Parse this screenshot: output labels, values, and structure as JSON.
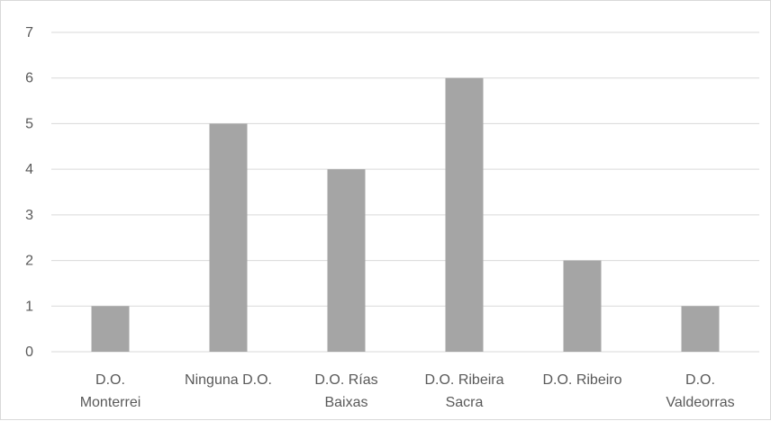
{
  "chart_data": {
    "type": "bar",
    "title": "",
    "xlabel": "",
    "ylabel": "",
    "ylim": [
      0,
      7
    ],
    "yticks": [
      0,
      1,
      2,
      3,
      4,
      5,
      6,
      7
    ],
    "grid": true,
    "legend": "none",
    "bar_color": "#a5a5a5",
    "grid_color": "#d9d9d9",
    "categories": [
      [
        "D.O.",
        "Monterrei"
      ],
      [
        "Ninguna D.O."
      ],
      [
        "D.O. Rías",
        "Baixas"
      ],
      [
        "D.O. Ribeira",
        "Sacra"
      ],
      [
        "D.O. Ribeiro"
      ],
      [
        "D.O.",
        "Valdeorras"
      ]
    ],
    "values": [
      1,
      5,
      4,
      6,
      2,
      1
    ]
  }
}
